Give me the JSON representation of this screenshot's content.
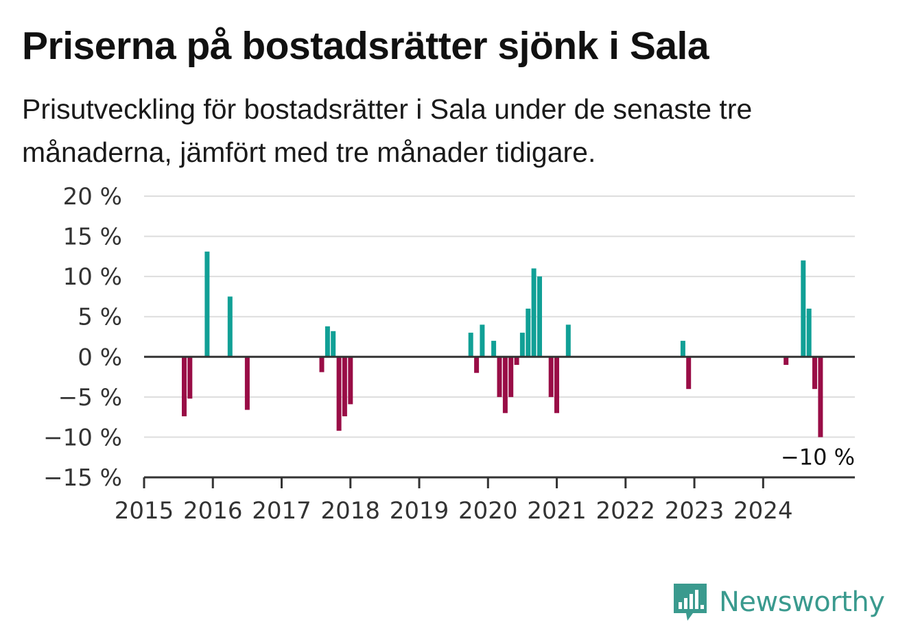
{
  "title": "Priserna på bostadsrätter sjönk i Sala",
  "subtitle": "Prisutveckling för bostadsrätter i Sala under de senaste tre månaderna, jämfört med tre månader tidigare.",
  "brand": {
    "name": "Newsworthy",
    "logo_icon": "bar-chart-speech-bubble-icon",
    "color": "#3a9a8e"
  },
  "colors": {
    "positive": "#11a096",
    "negative": "#990d46",
    "grid": "#dddddd",
    "axis": "#333333"
  },
  "chart_data": {
    "type": "bar",
    "x_ticks": [
      "2015",
      "2016",
      "2017",
      "2018",
      "2019",
      "2020",
      "2021",
      "2022",
      "2023",
      "2024"
    ],
    "y_ticks": [
      {
        "value": 20,
        "label": "20 %"
      },
      {
        "value": 15,
        "label": "15 %"
      },
      {
        "value": 10,
        "label": "10 %"
      },
      {
        "value": 5,
        "label": "5 %"
      },
      {
        "value": 0,
        "label": "0 %"
      },
      {
        "value": -5,
        "label": "−5 %"
      },
      {
        "value": -10,
        "label": "−10 %"
      },
      {
        "value": -15,
        "label": "−15 %"
      }
    ],
    "ylim": [
      -15,
      20
    ],
    "xlim": [
      "2015-01",
      "2025-05"
    ],
    "grid": true,
    "annotation": {
      "label": "−10 %",
      "x": "2024-10",
      "y": -10
    },
    "points": [
      {
        "x": "2015-08",
        "y": -7.4
      },
      {
        "x": "2015-09",
        "y": -5.2
      },
      {
        "x": "2015-12",
        "y": 13.1
      },
      {
        "x": "2016-04",
        "y": 7.5
      },
      {
        "x": "2016-07",
        "y": -6.6
      },
      {
        "x": "2017-08",
        "y": -1.9
      },
      {
        "x": "2017-09",
        "y": 3.8
      },
      {
        "x": "2017-10",
        "y": 3.2
      },
      {
        "x": "2017-11",
        "y": -9.2
      },
      {
        "x": "2017-12",
        "y": -7.4
      },
      {
        "x": "2018-01",
        "y": -5.9
      },
      {
        "x": "2019-10",
        "y": 3.0
      },
      {
        "x": "2019-11",
        "y": -2.0
      },
      {
        "x": "2019-12",
        "y": 4.0
      },
      {
        "x": "2020-02",
        "y": 2.0
      },
      {
        "x": "2020-03",
        "y": -5.0
      },
      {
        "x": "2020-04",
        "y": -7.0
      },
      {
        "x": "2020-05",
        "y": -5.0
      },
      {
        "x": "2020-06",
        "y": -1.0
      },
      {
        "x": "2020-07",
        "y": 3.0
      },
      {
        "x": "2020-08",
        "y": 6.0
      },
      {
        "x": "2020-09",
        "y": 11.0
      },
      {
        "x": "2020-10",
        "y": 10.0
      },
      {
        "x": "2020-12",
        "y": -5.0
      },
      {
        "x": "2021-01",
        "y": -7.0
      },
      {
        "x": "2021-03",
        "y": 4.0
      },
      {
        "x": "2022-11",
        "y": 2.0
      },
      {
        "x": "2022-12",
        "y": -4.0
      },
      {
        "x": "2024-05",
        "y": -1.0
      },
      {
        "x": "2024-08",
        "y": 12.0
      },
      {
        "x": "2024-09",
        "y": 6.0
      },
      {
        "x": "2024-10",
        "y": -4.0
      },
      {
        "x": "2024-11",
        "y": -10.0
      }
    ]
  }
}
